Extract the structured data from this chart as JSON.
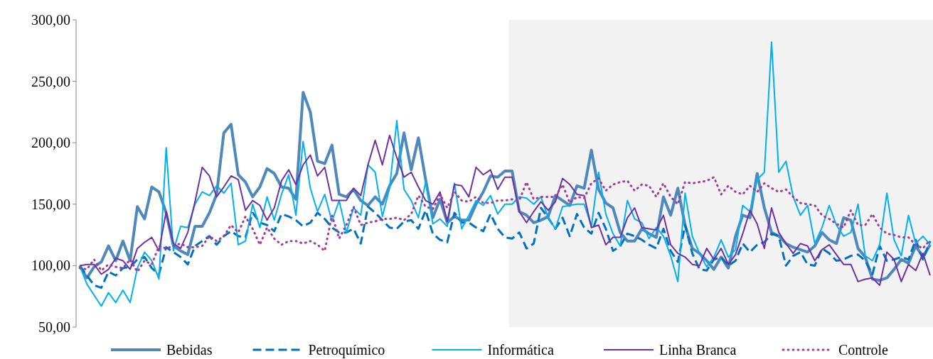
{
  "chart_data": {
    "type": "line",
    "categories": [
      null,
      null,
      null,
      null,
      null,
      null,
      null,
      null,
      null,
      null,
      null,
      null,
      null,
      null,
      null,
      null,
      null,
      null,
      null,
      null,
      null,
      null,
      null,
      null,
      null,
      null,
      null,
      null,
      null,
      null,
      null,
      null,
      null,
      null,
      null,
      null,
      null,
      null,
      null,
      null,
      null,
      null,
      null,
      null,
      null,
      null,
      null,
      null,
      null,
      null,
      null,
      null,
      null,
      null,
      null,
      null,
      null,
      null,
      null,
      null,
      null,
      null,
      null,
      null,
      null,
      null,
      null,
      null,
      null,
      null,
      null,
      null,
      null,
      null,
      null,
      null,
      null,
      null,
      null,
      null,
      null,
      null,
      null,
      null,
      null,
      null,
      null,
      null,
      null,
      null,
      null,
      null,
      null,
      null,
      null,
      null,
      null,
      null,
      null,
      null,
      null,
      null,
      null,
      null,
      null,
      null,
      null,
      null,
      null,
      null,
      null,
      null,
      null,
      null,
      null,
      null,
      null,
      null,
      null
    ],
    "ylim": [
      50,
      300
    ],
    "yticks": [
      {
        "value": 50,
        "label": "50,00"
      },
      {
        "value": 100,
        "label": "100,00"
      },
      {
        "value": 150,
        "label": "150,00"
      },
      {
        "value": 200,
        "label": "200,00"
      },
      {
        "value": 250,
        "label": "250,00"
      },
      {
        "value": 300,
        "label": "300,00"
      }
    ],
    "tick_labels": "y",
    "grid": false,
    "legend": "bottom",
    "series": [
      {
        "name": "Bebidas",
        "color": "#4f88bb",
        "line_style": "solid",
        "values": [
          100,
          90,
          99,
          103,
          116,
          104,
          120,
          104,
          148,
          138,
          164,
          160,
          143,
          116,
          112,
          109,
          132,
          132,
          143,
          158,
          208,
          215,
          174,
          168,
          156,
          164,
          179,
          175,
          164,
          163,
          154,
          241,
          225,
          185,
          183,
          198,
          158,
          156,
          162,
          153,
          149,
          156,
          150,
          165,
          175,
          208,
          178,
          204,
          170,
          139,
          154,
          135,
          140,
          137,
          137,
          150,
          160,
          173,
          172,
          177,
          177,
          144,
          141,
          135,
          137,
          140,
          157,
          153,
          149,
          165,
          163,
          194,
          162,
          151,
          147,
          127,
          120,
          120,
          130,
          126,
          123,
          156,
          141,
          163,
          133,
          114,
          110,
          104,
          97,
          107,
          98,
          124,
          141,
          139,
          175,
          147,
          127,
          124,
          118,
          115,
          113,
          111,
          116,
          127,
          121,
          118,
          139,
          137,
          114,
          107,
          89,
          88,
          90,
          97,
          105,
          102,
          116,
          107,
          117
        ]
      },
      {
        "name": "Petroquímico",
        "color": "#0070c0",
        "line_style": "dashed",
        "values": [
          100,
          92,
          84,
          82,
          95,
          92,
          98,
          99,
          105,
          107,
          98,
          93,
          115,
          111,
          107,
          101,
          116,
          120,
          124,
          117,
          124,
          128,
          124,
          123,
          143,
          135,
          133,
          128,
          142,
          140,
          137,
          132,
          135,
          143,
          138,
          131,
          127,
          127,
          130,
          118,
          148,
          143,
          137,
          131,
          130,
          136,
          137,
          130,
          145,
          126,
          121,
          119,
          143,
          135,
          135,
          131,
          128,
          142,
          130,
          123,
          122,
          127,
          114,
          118,
          147,
          139,
          130,
          139,
          124,
          142,
          131,
          126,
          143,
          130,
          112,
          116,
          126,
          124,
          121,
          117,
          114,
          130,
          112,
          103,
          133,
          110,
          97,
          96,
          105,
          107,
          100,
          104,
          118,
          111,
          117,
          119,
          126,
          124,
          100,
          108,
          111,
          101,
          100,
          114,
          110,
          104,
          105,
          108,
          109,
          104,
          93,
          116,
          104,
          105,
          107,
          105,
          121,
          105,
          120
        ]
      },
      {
        "name": "Informática",
        "color": "#00b0f0",
        "line_style": "solid",
        "values": [
          100,
          85,
          76,
          67,
          78,
          70,
          80,
          70,
          98,
          111,
          104,
          89,
          196,
          112,
          132,
          131,
          150,
          160,
          157,
          165,
          159,
          167,
          117,
          120,
          150,
          131,
          156,
          137,
          158,
          174,
          141,
          201,
          163,
          144,
          158,
          136,
          153,
          127,
          147,
          141,
          182,
          176,
          140,
          163,
          218,
          162,
          153,
          139,
          168,
          134,
          138,
          132,
          167,
          130,
          141,
          153,
          149,
          157,
          142,
          150,
          150,
          156,
          155,
          150,
          156,
          139,
          130,
          148,
          149,
          150,
          150,
          132,
          176,
          142,
          126,
          116,
          153,
          138,
          135,
          122,
          131,
          124,
          108,
          87,
          159,
          124,
          110,
          99,
          107,
          121,
          107,
          113,
          149,
          144,
          170,
          176,
          282,
          176,
          185,
          156,
          141,
          149,
          118,
          131,
          149,
          133,
          124,
          127,
          150,
          108,
          104,
          117,
          159,
          121,
          108,
          141,
          118,
          124,
          117
        ]
      },
      {
        "name": "Linha Branca",
        "color": "#7030a0",
        "line_style": "solid",
        "values": [
          100,
          101,
          101,
          93,
          97,
          106,
          104,
          97,
          114,
          119,
          123,
          112,
          144,
          118,
          114,
          127,
          152,
          180,
          173,
          156,
          164,
          173,
          170,
          145,
          153,
          149,
          137,
          147,
          169,
          178,
          166,
          182,
          190,
          173,
          180,
          153,
          153,
          153,
          163,
          157,
          182,
          202,
          182,
          206,
          188,
          172,
          176,
          164,
          153,
          150,
          160,
          136,
          166,
          165,
          156,
          180,
          174,
          178,
          162,
          172,
          172,
          144,
          135,
          144,
          152,
          145,
          152,
          171,
          166,
          158,
          157,
          131,
          133,
          117,
          123,
          123,
          139,
          147,
          131,
          130,
          129,
          141,
          117,
          110,
          107,
          101,
          100,
          114,
          105,
          114,
          101,
          109,
          126,
          145,
          134,
          114,
          147,
          127,
          118,
          110,
          118,
          116,
          104,
          113,
          117,
          109,
          101,
          101,
          87,
          89,
          90,
          84,
          111,
          105,
          87,
          101,
          96,
          110,
          92
        ]
      },
      {
        "name": "Controle",
        "color": "#a03c9e",
        "line_style": "dotted",
        "values": [
          98,
          97,
          105,
          96,
          101,
          99,
          98,
          105,
          95,
          104,
          101,
          116,
          114,
          116,
          118,
          115,
          115,
          116,
          124,
          120,
          124,
          133,
          127,
          140,
          130,
          117,
          131,
          122,
          117,
          120,
          120,
          118,
          120,
          117,
          112,
          141,
          122,
          133,
          148,
          133,
          135,
          136,
          138,
          138,
          139,
          137,
          142,
          157,
          148,
          146,
          158,
          147,
          160,
          153,
          152,
          156,
          151,
          151,
          153,
          153,
          154,
          153,
          168,
          154,
          156,
          156,
          156,
          166,
          151,
          156,
          155,
          167,
          171,
          161,
          166,
          168,
          169,
          161,
          166,
          165,
          156,
          167,
          156,
          150,
          168,
          167,
          168,
          169,
          172,
          158,
          165,
          160,
          158,
          165,
          160,
          167,
          163,
          160,
          162,
          156,
          151,
          150,
          149,
          141,
          138,
          134,
          131,
          145,
          133,
          133,
          142,
          131,
          126,
          125,
          123,
          123,
          117,
          114,
          121
        ]
      }
    ]
  }
}
